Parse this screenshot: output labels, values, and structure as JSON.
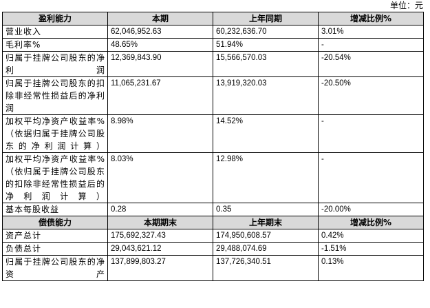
{
  "unit": "单位：元",
  "profit": {
    "headers": [
      "盈利能力",
      "本期",
      "上年同期",
      "增减比例%"
    ],
    "rows": [
      {
        "label": "营业收入",
        "current": "62,046,952.63",
        "prior": "60,232,636.70",
        "change": "3.01%"
      },
      {
        "label": "毛利率%",
        "current": "48.65%",
        "prior": "51.94%",
        "change": "-"
      },
      {
        "label": "归属于挂牌公司股东的净利润",
        "current": "12,369,843.90",
        "prior": "15,566,570.03",
        "change": "-20.54%"
      },
      {
        "label": "归属于挂牌公司股东的扣除非经常性损益后的净利润",
        "current": "11,065,231.67",
        "prior": "13,919,320.03",
        "change": "-20.50%"
      },
      {
        "label": "加权平均净资产收益率%（依据归属于挂牌公司股东的净利润计算）",
        "current": "8.98%",
        "prior": "14.52%",
        "change": "-"
      },
      {
        "label": "加权平均净资产收益率%（依归属于挂牌公司股东的扣除非经常性损益后的净利润计算）",
        "current": "8.03%",
        "prior": "12.98%",
        "change": "-"
      },
      {
        "label": "基本每股收益",
        "current": "0.28",
        "prior": "0.35",
        "change": "-20.00%"
      }
    ]
  },
  "solvency": {
    "headers": [
      "偿债能力",
      "本期期末",
      "上年期末",
      "增减比例%"
    ],
    "rows": [
      {
        "label": "资产总计",
        "current": "175,692,327.43",
        "prior": "174,950,608.57",
        "change": "0.42%"
      },
      {
        "label": "负债总计",
        "current": "29,043,621.12",
        "prior": "29,488,074.69",
        "change": "-1.51%"
      },
      {
        "label": "归属于挂牌公司股东的净资产",
        "current": "137,899,803.27",
        "prior": "137,726,340.51",
        "change": "0.13%"
      }
    ]
  }
}
